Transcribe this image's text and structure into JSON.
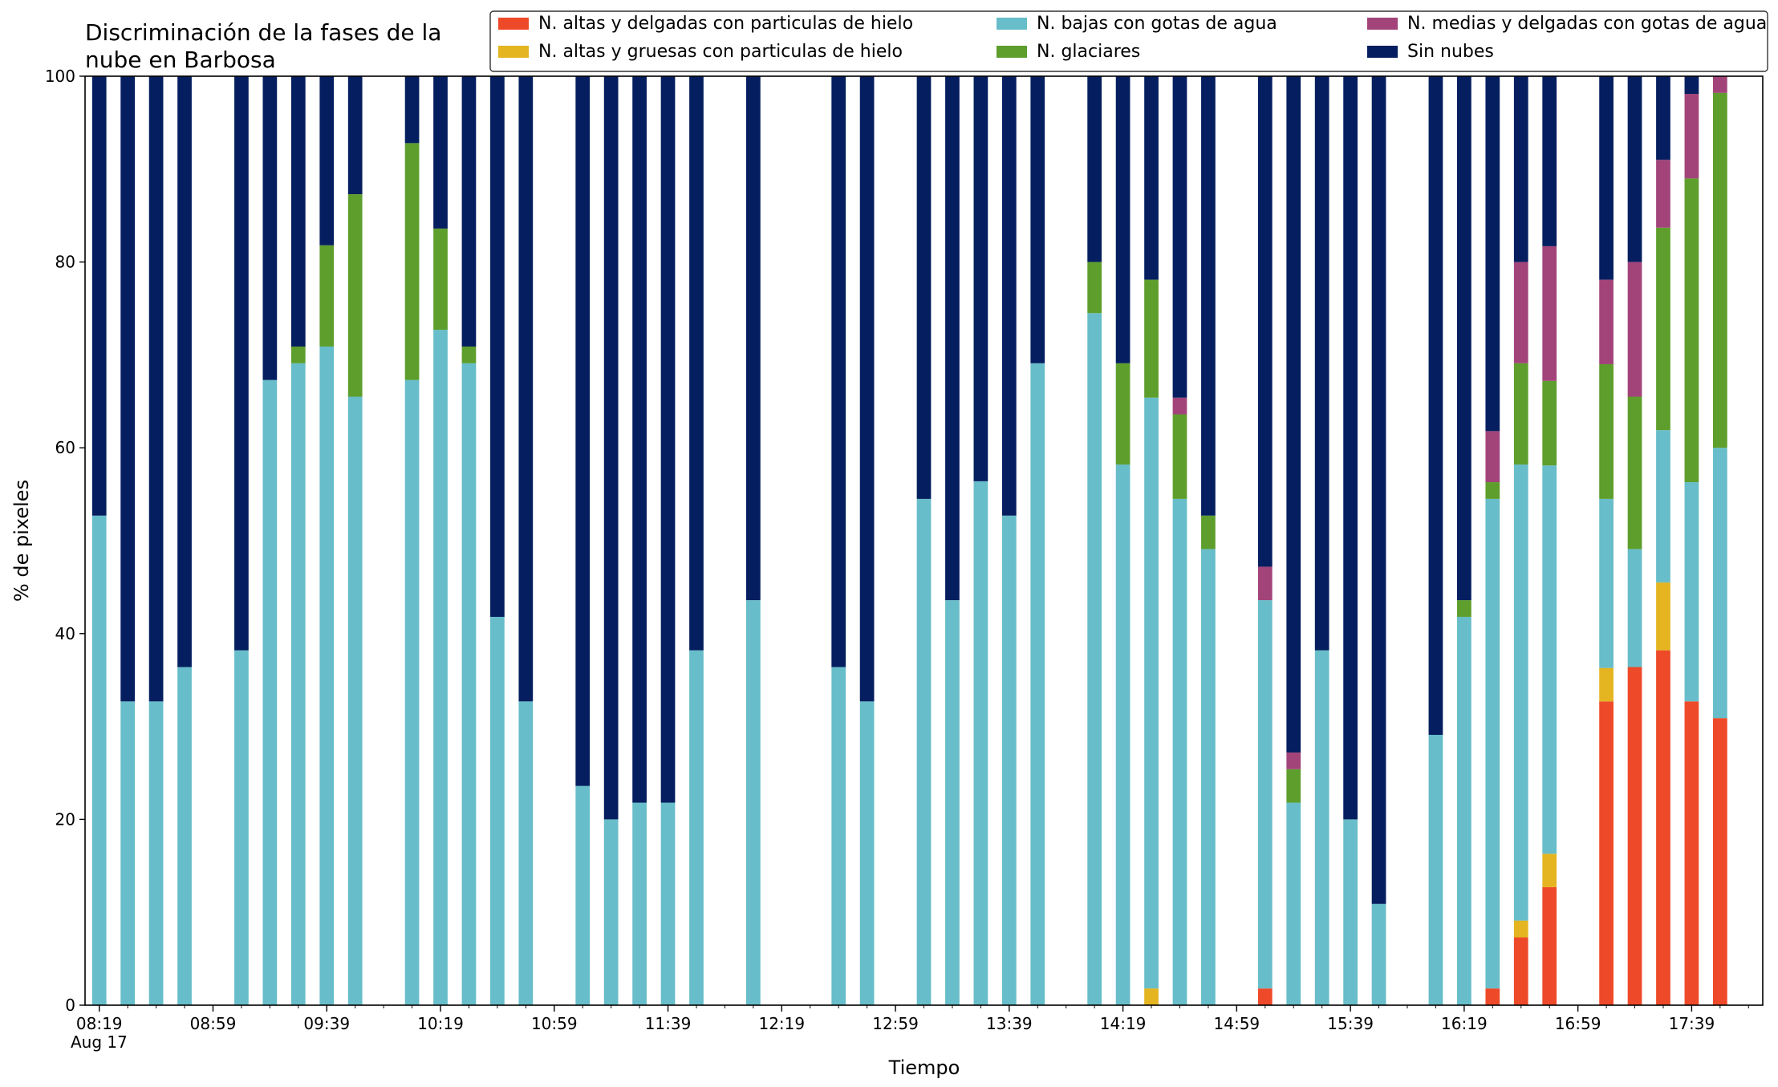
{
  "chart_data": {
    "type": "bar",
    "stacked": true,
    "title_line1": "Discriminación de la fases de la",
    "title_line2": "nube en Barbosa",
    "xlabel": "Tiempo",
    "ylabel": "% de pixeles",
    "ylim": [
      0,
      100
    ],
    "yticks": [
      "0",
      "20",
      "40",
      "60",
      "80",
      "100"
    ],
    "xlim_slots": [
      -0.5,
      58.5
    ],
    "date_label": "Aug 17",
    "x_ticks": [
      {
        "label": "08:19",
        "slot": 0
      },
      {
        "label": "08:59",
        "slot": 4
      },
      {
        "label": "09:39",
        "slot": 8
      },
      {
        "label": "10:19",
        "slot": 12
      },
      {
        "label": "10:59",
        "slot": 16
      },
      {
        "label": "11:39",
        "slot": 20
      },
      {
        "label": "12:19",
        "slot": 24
      },
      {
        "label": "12:59",
        "slot": 28
      },
      {
        "label": "13:39",
        "slot": 32
      },
      {
        "label": "14:19",
        "slot": 36
      },
      {
        "label": "14:59",
        "slot": 40
      },
      {
        "label": "15:39",
        "slot": 44
      },
      {
        "label": "16:19",
        "slot": 48
      },
      {
        "label": "16:59",
        "slot": 52
      },
      {
        "label": "17:39",
        "slot": 56
      }
    ],
    "legend_position": "top-right",
    "series": [
      {
        "name": "N. altas y delgadas con particulas de hielo",
        "color": "#ee4a29"
      },
      {
        "name": "N. altas y gruesas con particulas de hielo",
        "color": "#e4b520"
      },
      {
        "name": "N. bajas con gotas de agua",
        "color": "#67bdc9"
      },
      {
        "name": "N. glaciares",
        "color": "#5e9e2c"
      },
      {
        "name": "N. medias y delgadas con gotas de agua",
        "color": "#a2447a"
      },
      {
        "name": "Sin nubes",
        "color": "#041e5f"
      }
    ],
    "bars": [
      {
        "slot": 0,
        "values": [
          0,
          0,
          52.7,
          0,
          0,
          47.3
        ]
      },
      {
        "slot": 1,
        "values": [
          0,
          0,
          32.7,
          0,
          0,
          67.3
        ]
      },
      {
        "slot": 2,
        "values": [
          0,
          0,
          32.7,
          0,
          0,
          67.3
        ]
      },
      {
        "slot": 3,
        "values": [
          0,
          0,
          36.4,
          0,
          0,
          63.6
        ]
      },
      {
        "slot": 5,
        "values": [
          0,
          0,
          38.2,
          0,
          0,
          61.8
        ]
      },
      {
        "slot": 6,
        "values": [
          0,
          0,
          67.3,
          0,
          0,
          32.7
        ]
      },
      {
        "slot": 7,
        "values": [
          0,
          0,
          69.1,
          1.8,
          0,
          29.1
        ]
      },
      {
        "slot": 8,
        "values": [
          0,
          0,
          70.9,
          10.9,
          0,
          18.2
        ]
      },
      {
        "slot": 9,
        "values": [
          0,
          0,
          65.5,
          21.8,
          0,
          12.7
        ]
      },
      {
        "slot": 11,
        "values": [
          0,
          0,
          67.3,
          25.5,
          0,
          7.2
        ]
      },
      {
        "slot": 12,
        "values": [
          0,
          0,
          72.7,
          10.9,
          0,
          16.4
        ]
      },
      {
        "slot": 13,
        "values": [
          0,
          0,
          69.1,
          1.8,
          0,
          29.1
        ]
      },
      {
        "slot": 14,
        "values": [
          0,
          0,
          41.8,
          0,
          0,
          58.2
        ]
      },
      {
        "slot": 15,
        "values": [
          0,
          0,
          32.7,
          0,
          0,
          67.3
        ]
      },
      {
        "slot": 17,
        "values": [
          0,
          0,
          23.6,
          0,
          0,
          76.4
        ]
      },
      {
        "slot": 18,
        "values": [
          0,
          0,
          20.0,
          0,
          0,
          80.0
        ]
      },
      {
        "slot": 19,
        "values": [
          0,
          0,
          21.8,
          0,
          0,
          78.2
        ]
      },
      {
        "slot": 20,
        "values": [
          0,
          0,
          21.8,
          0,
          0,
          78.2
        ]
      },
      {
        "slot": 21,
        "values": [
          0,
          0,
          38.2,
          0,
          0,
          61.8
        ]
      },
      {
        "slot": 23,
        "values": [
          0,
          0,
          43.6,
          0,
          0,
          56.4
        ]
      },
      {
        "slot": 26,
        "values": [
          0,
          0,
          36.4,
          0,
          0,
          63.6
        ]
      },
      {
        "slot": 27,
        "values": [
          0,
          0,
          32.7,
          0,
          0,
          67.3
        ]
      },
      {
        "slot": 29,
        "values": [
          0,
          0,
          54.5,
          0,
          0,
          45.5
        ]
      },
      {
        "slot": 30,
        "values": [
          0,
          0,
          43.6,
          0,
          0,
          56.4
        ]
      },
      {
        "slot": 31,
        "values": [
          0,
          0,
          56.4,
          0,
          0,
          43.6
        ]
      },
      {
        "slot": 32,
        "values": [
          0,
          0,
          52.7,
          0,
          0,
          47.3
        ]
      },
      {
        "slot": 33,
        "values": [
          0,
          0,
          69.1,
          0,
          0,
          30.9
        ]
      },
      {
        "slot": 35,
        "values": [
          0,
          0,
          74.5,
          5.5,
          0,
          20.0
        ]
      },
      {
        "slot": 36,
        "values": [
          0,
          0,
          58.2,
          10.9,
          0,
          30.9
        ]
      },
      {
        "slot": 37,
        "values": [
          0,
          1.8,
          63.6,
          12.7,
          0,
          21.9
        ]
      },
      {
        "slot": 38,
        "values": [
          0,
          0,
          54.5,
          9.1,
          1.8,
          34.6
        ]
      },
      {
        "slot": 39,
        "values": [
          0,
          0,
          49.1,
          3.6,
          0,
          47.3
        ]
      },
      {
        "slot": 41,
        "values": [
          1.8,
          0,
          41.8,
          0,
          3.6,
          52.8
        ]
      },
      {
        "slot": 42,
        "values": [
          0,
          0,
          21.8,
          3.6,
          1.8,
          72.8
        ]
      },
      {
        "slot": 43,
        "values": [
          0,
          0,
          38.2,
          0,
          0,
          61.8
        ]
      },
      {
        "slot": 44,
        "values": [
          0,
          0,
          20.0,
          0,
          0,
          80.0
        ]
      },
      {
        "slot": 45,
        "values": [
          0,
          0,
          10.9,
          0,
          0,
          89.1
        ]
      },
      {
        "slot": 47,
        "values": [
          0,
          0,
          29.1,
          0,
          0,
          70.9
        ]
      },
      {
        "slot": 48,
        "values": [
          0,
          0,
          41.8,
          1.8,
          0,
          56.4
        ]
      },
      {
        "slot": 49,
        "values": [
          1.8,
          0,
          52.7,
          1.8,
          5.5,
          38.2
        ]
      },
      {
        "slot": 50,
        "values": [
          7.3,
          1.8,
          49.1,
          10.9,
          10.9,
          20.0
        ]
      },
      {
        "slot": 51,
        "values": [
          12.7,
          3.6,
          41.8,
          9.1,
          14.5,
          18.3
        ]
      },
      {
        "slot": 53,
        "values": [
          32.7,
          3.6,
          18.2,
          14.5,
          9.1,
          21.9
        ]
      },
      {
        "slot": 54,
        "values": [
          36.4,
          0,
          12.7,
          16.4,
          14.5,
          20.0
        ]
      },
      {
        "slot": 55,
        "values": [
          38.2,
          7.3,
          16.4,
          21.8,
          7.3,
          9.0
        ]
      },
      {
        "slot": 56,
        "values": [
          32.7,
          0,
          23.6,
          32.7,
          9.1,
          1.9
        ]
      },
      {
        "slot": 57,
        "values": [
          30.9,
          0,
          29.1,
          38.2,
          1.8,
          0
        ]
      }
    ]
  }
}
